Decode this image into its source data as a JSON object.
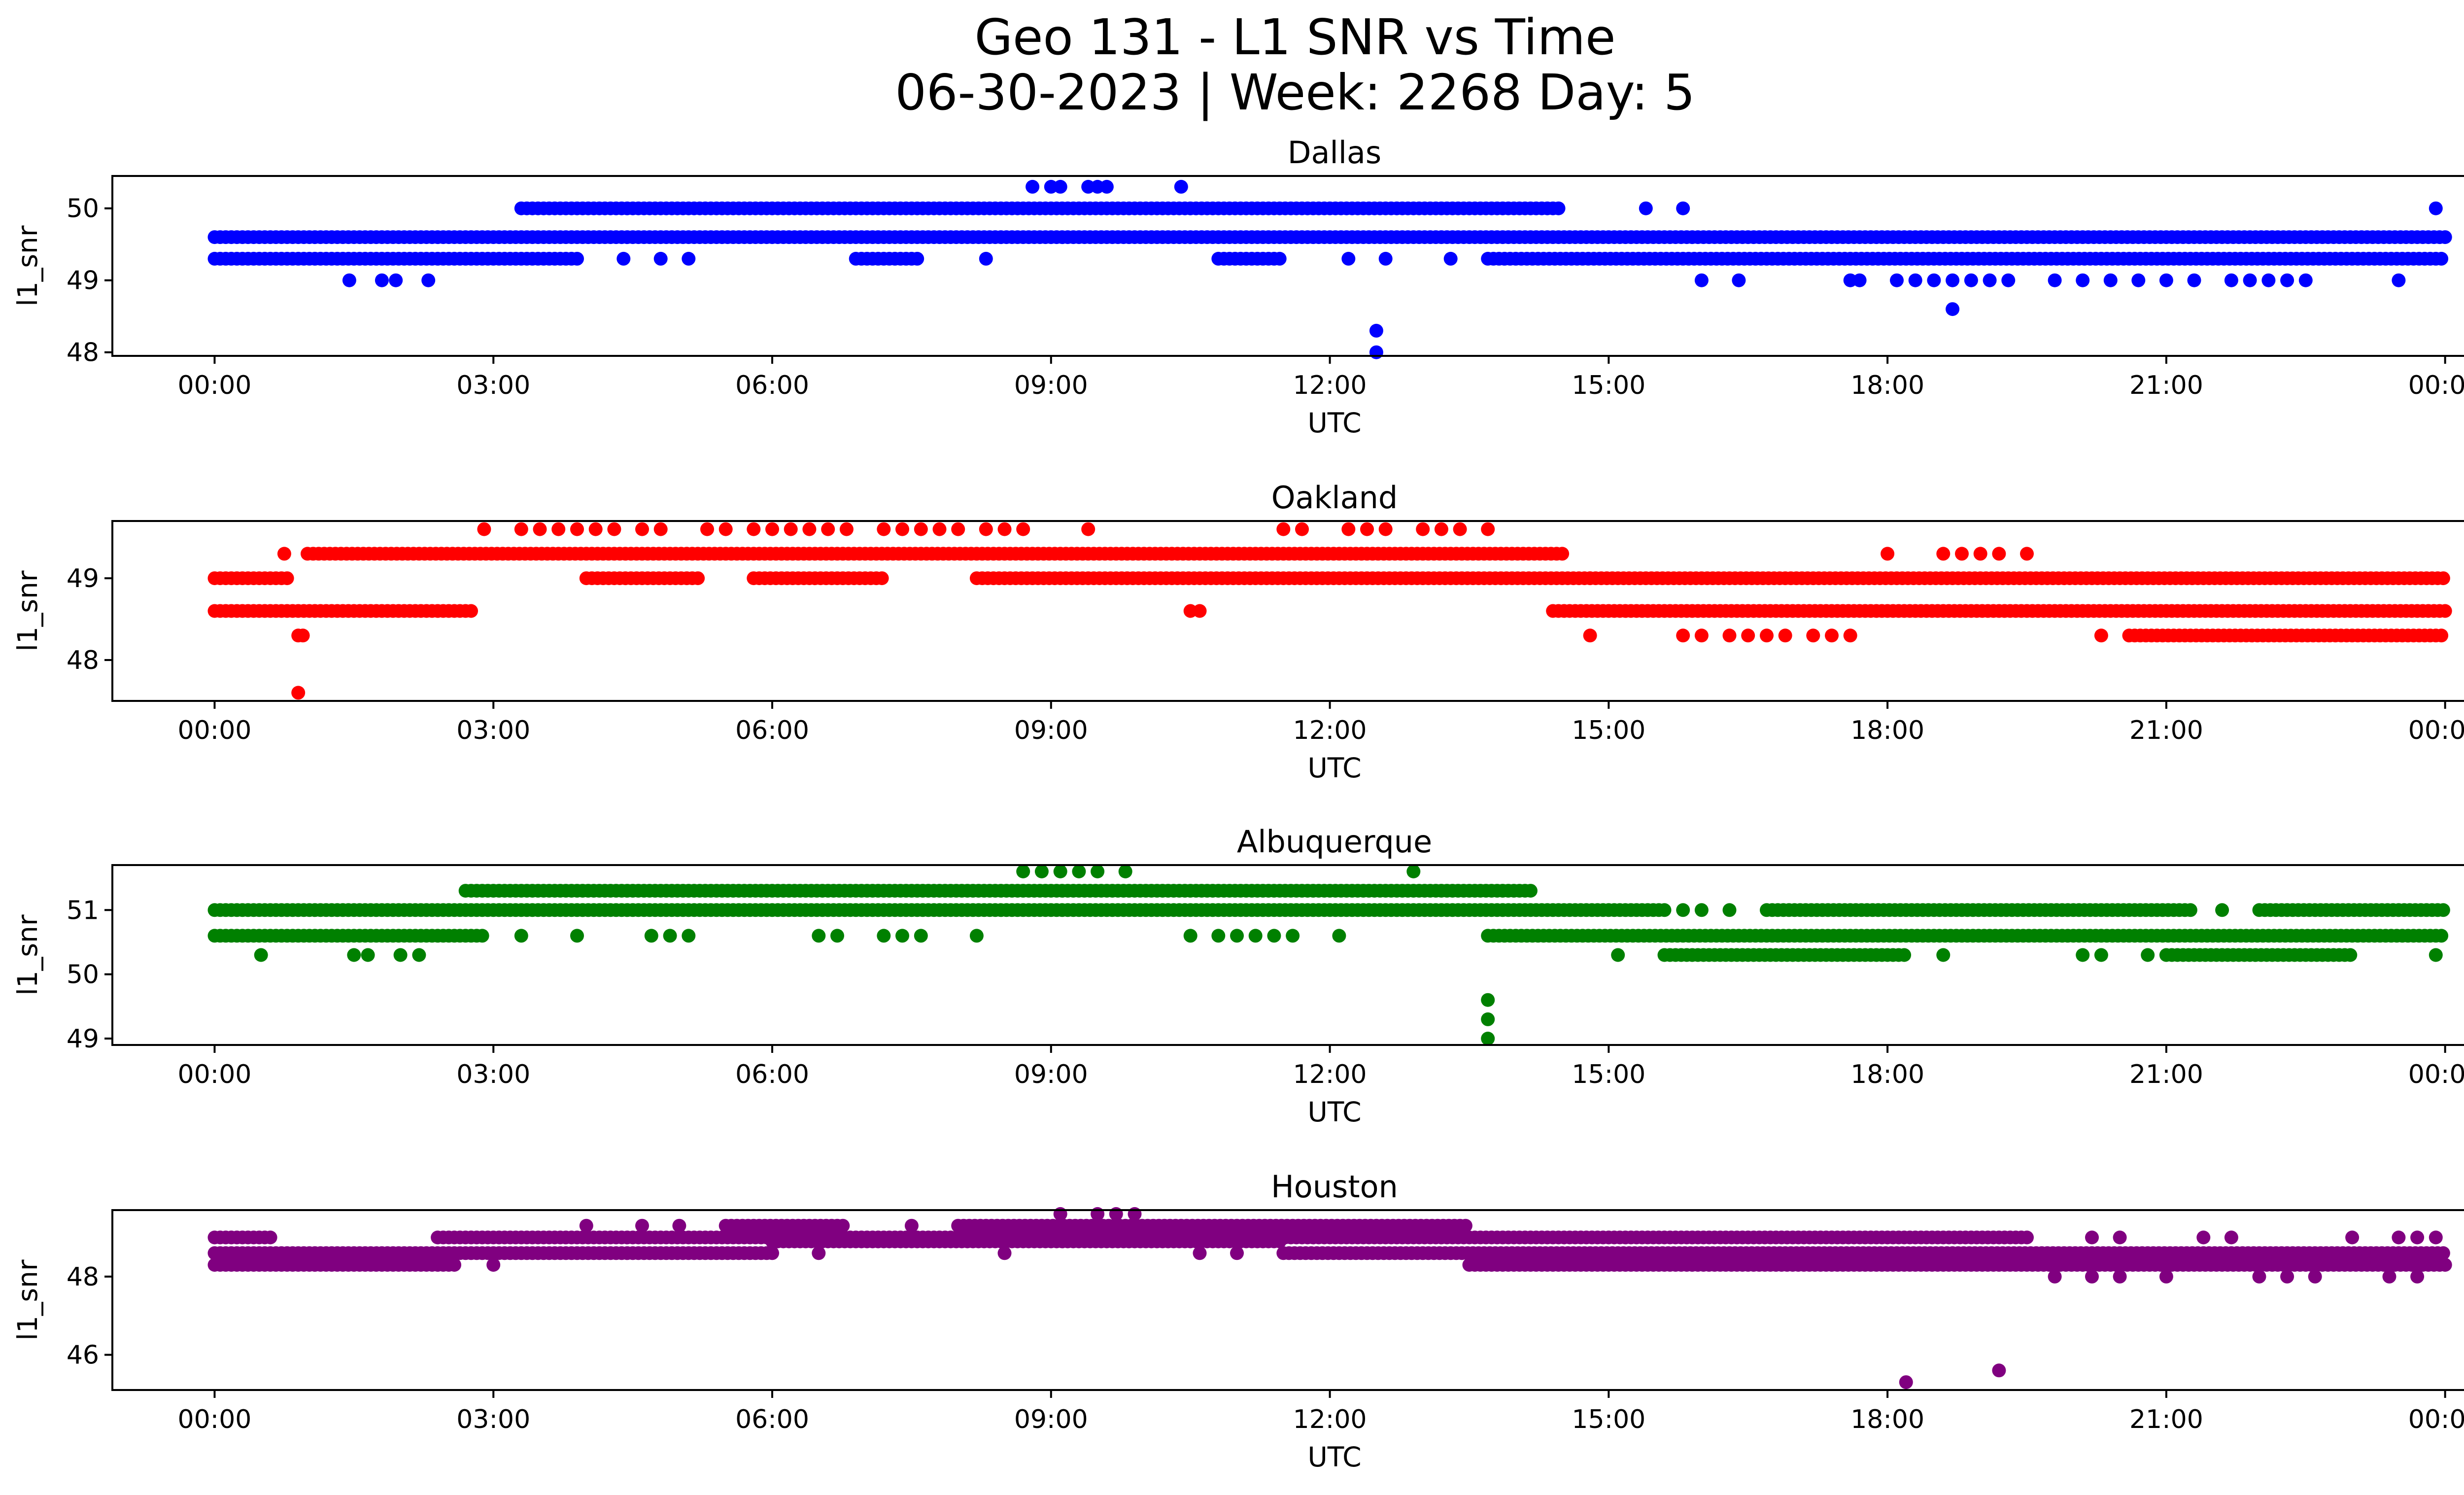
{
  "title": {
    "line1": "Geo 131 - L1 SNR vs Time",
    "line2": "06-30-2023 | Week: 2268 Day: 5"
  },
  "chart_data": [
    {
      "type": "scatter",
      "title": "Dallas",
      "xlabel": "UTC",
      "ylabel": "l1_snr",
      "color": "#0000ff",
      "xlim": [
        -1.1,
        25.2
      ],
      "ylim": [
        47.95,
        50.45
      ],
      "xticks": [
        0,
        3,
        6,
        9,
        12,
        15,
        18,
        21,
        24
      ],
      "xtick_labels": [
        "00:00",
        "03:00",
        "06:00",
        "09:00",
        "12:00",
        "15:00",
        "18:00",
        "21:00",
        "00:00"
      ],
      "yticks": [
        48,
        49,
        50
      ],
      "ytick_labels": [
        "48",
        "49",
        "50"
      ],
      "bands": [
        {
          "y": 49.6,
          "ranges": [
            [
              0,
              24
            ]
          ]
        },
        {
          "y": 49.3,
          "ranges": [
            [
              0,
              3.9
            ],
            [
              6.9,
              7.6
            ],
            [
              10.8,
              11.5
            ],
            [
              13.7,
              24
            ]
          ]
        },
        {
          "y": 50.0,
          "ranges": [
            [
              3.3,
              14.5
            ]
          ]
        }
      ],
      "points": [
        {
          "x": 8.8,
          "y": 50.3
        },
        {
          "x": 9.0,
          "y": 50.3
        },
        {
          "x": 9.1,
          "y": 50.3
        },
        {
          "x": 9.4,
          "y": 50.3
        },
        {
          "x": 9.5,
          "y": 50.3
        },
        {
          "x": 9.6,
          "y": 50.3
        },
        {
          "x": 10.4,
          "y": 50.3
        },
        {
          "x": 15.4,
          "y": 50.0
        },
        {
          "x": 15.8,
          "y": 50.0
        },
        {
          "x": 23.9,
          "y": 50.0
        },
        {
          "x": 4.4,
          "y": 49.3
        },
        {
          "x": 4.8,
          "y": 49.3
        },
        {
          "x": 5.1,
          "y": 49.3
        },
        {
          "x": 8.3,
          "y": 49.3
        },
        {
          "x": 12.2,
          "y": 49.3
        },
        {
          "x": 12.6,
          "y": 49.3
        },
        {
          "x": 13.3,
          "y": 49.3
        },
        {
          "x": 1.45,
          "y": 49.0
        },
        {
          "x": 1.8,
          "y": 49.0
        },
        {
          "x": 1.95,
          "y": 49.0
        },
        {
          "x": 2.3,
          "y": 49.0
        },
        {
          "x": 16.0,
          "y": 49.0
        },
        {
          "x": 16.4,
          "y": 49.0
        },
        {
          "x": 17.6,
          "y": 49.0
        },
        {
          "x": 17.7,
          "y": 49.0
        },
        {
          "x": 18.1,
          "y": 49.0
        },
        {
          "x": 18.3,
          "y": 49.0
        },
        {
          "x": 18.5,
          "y": 49.0
        },
        {
          "x": 18.7,
          "y": 49.0
        },
        {
          "x": 18.9,
          "y": 49.0
        },
        {
          "x": 19.1,
          "y": 49.0
        },
        {
          "x": 19.3,
          "y": 49.0
        },
        {
          "x": 19.8,
          "y": 49.0
        },
        {
          "x": 20.1,
          "y": 49.0
        },
        {
          "x": 20.4,
          "y": 49.0
        },
        {
          "x": 20.7,
          "y": 49.0
        },
        {
          "x": 21.0,
          "y": 49.0
        },
        {
          "x": 21.3,
          "y": 49.0
        },
        {
          "x": 21.7,
          "y": 49.0
        },
        {
          "x": 21.9,
          "y": 49.0
        },
        {
          "x": 22.1,
          "y": 49.0
        },
        {
          "x": 22.3,
          "y": 49.0
        },
        {
          "x": 22.5,
          "y": 49.0
        },
        {
          "x": 23.5,
          "y": 49.0
        },
        {
          "x": 18.7,
          "y": 48.6
        },
        {
          "x": 12.5,
          "y": 48.3
        },
        {
          "x": 12.5,
          "y": 48.0
        }
      ]
    },
    {
      "type": "scatter",
      "title": "Oakland",
      "xlabel": "UTC",
      "ylabel": "l1_snr",
      "color": "#ff0000",
      "xlim": [
        -1.1,
        25.2
      ],
      "ylim": [
        47.5,
        49.7
      ],
      "xticks": [
        0,
        3,
        6,
        9,
        12,
        15,
        18,
        21,
        24
      ],
      "xtick_labels": [
        "00:00",
        "03:00",
        "06:00",
        "09:00",
        "12:00",
        "15:00",
        "18:00",
        "21:00",
        "00:00"
      ],
      "yticks": [
        48,
        49
      ],
      "ytick_labels": [
        "48",
        "49"
      ],
      "bands": [
        {
          "y": 49.0,
          "ranges": [
            [
              0,
              0.8
            ],
            [
              4.0,
              5.2
            ],
            [
              5.8,
              7.2
            ],
            [
              8.2,
              24
            ]
          ]
        },
        {
          "y": 48.6,
          "ranges": [
            [
              0,
              2.8
            ],
            [
              14.4,
              24
            ]
          ]
        },
        {
          "y": 49.3,
          "ranges": [
            [
              1.0,
              14.5
            ]
          ]
        },
        {
          "y": 48.3,
          "ranges": [
            [
              20.6,
              24
            ]
          ]
        }
      ],
      "points": [
        {
          "x": 0.75,
          "y": 49.3
        },
        {
          "x": 2.9,
          "y": 49.6
        },
        {
          "x": 3.3,
          "y": 49.6
        },
        {
          "x": 3.5,
          "y": 49.6
        },
        {
          "x": 3.7,
          "y": 49.6
        },
        {
          "x": 3.9,
          "y": 49.6
        },
        {
          "x": 4.1,
          "y": 49.6
        },
        {
          "x": 4.3,
          "y": 49.6
        },
        {
          "x": 4.6,
          "y": 49.6
        },
        {
          "x": 4.8,
          "y": 49.6
        },
        {
          "x": 5.3,
          "y": 49.6
        },
        {
          "x": 5.5,
          "y": 49.6
        },
        {
          "x": 5.8,
          "y": 49.6
        },
        {
          "x": 6.0,
          "y": 49.6
        },
        {
          "x": 6.2,
          "y": 49.6
        },
        {
          "x": 6.4,
          "y": 49.6
        },
        {
          "x": 6.6,
          "y": 49.6
        },
        {
          "x": 6.8,
          "y": 49.6
        },
        {
          "x": 7.2,
          "y": 49.6
        },
        {
          "x": 7.4,
          "y": 49.6
        },
        {
          "x": 7.6,
          "y": 49.6
        },
        {
          "x": 7.8,
          "y": 49.6
        },
        {
          "x": 8.0,
          "y": 49.6
        },
        {
          "x": 8.3,
          "y": 49.6
        },
        {
          "x": 8.5,
          "y": 49.6
        },
        {
          "x": 8.7,
          "y": 49.6
        },
        {
          "x": 9.4,
          "y": 49.6
        },
        {
          "x": 11.5,
          "y": 49.6
        },
        {
          "x": 11.7,
          "y": 49.6
        },
        {
          "x": 12.2,
          "y": 49.6
        },
        {
          "x": 12.4,
          "y": 49.6
        },
        {
          "x": 12.6,
          "y": 49.6
        },
        {
          "x": 13.0,
          "y": 49.6
        },
        {
          "x": 13.2,
          "y": 49.6
        },
        {
          "x": 13.4,
          "y": 49.6
        },
        {
          "x": 13.7,
          "y": 49.6
        },
        {
          "x": 14.8,
          "y": 49.0
        },
        {
          "x": 18.0,
          "y": 49.3
        },
        {
          "x": 18.6,
          "y": 49.3
        },
        {
          "x": 18.8,
          "y": 49.3
        },
        {
          "x": 19.0,
          "y": 49.3
        },
        {
          "x": 19.2,
          "y": 49.3
        },
        {
          "x": 19.5,
          "y": 49.3
        },
        {
          "x": 0.9,
          "y": 48.3
        },
        {
          "x": 0.95,
          "y": 48.3
        },
        {
          "x": 10.5,
          "y": 48.6
        },
        {
          "x": 10.6,
          "y": 48.6
        },
        {
          "x": 14.8,
          "y": 48.3
        },
        {
          "x": 15.8,
          "y": 48.3
        },
        {
          "x": 16.0,
          "y": 48.3
        },
        {
          "x": 16.3,
          "y": 48.3
        },
        {
          "x": 16.5,
          "y": 48.3
        },
        {
          "x": 16.7,
          "y": 48.3
        },
        {
          "x": 16.9,
          "y": 48.3
        },
        {
          "x": 17.2,
          "y": 48.3
        },
        {
          "x": 17.4,
          "y": 48.3
        },
        {
          "x": 17.6,
          "y": 48.3
        },
        {
          "x": 20.3,
          "y": 48.3
        },
        {
          "x": 0.9,
          "y": 47.6
        }
      ]
    },
    {
      "type": "scatter",
      "title": "Albuquerque",
      "xlabel": "UTC",
      "ylabel": "l1_snr",
      "color": "#008000",
      "xlim": [
        -1.1,
        25.2
      ],
      "ylim": [
        48.9,
        51.7
      ],
      "xticks": [
        0,
        3,
        6,
        9,
        12,
        15,
        18,
        21,
        24
      ],
      "xtick_labels": [
        "00:00",
        "03:00",
        "06:00",
        "09:00",
        "12:00",
        "15:00",
        "18:00",
        "21:00",
        "00:00"
      ],
      "yticks": [
        49,
        50,
        51
      ],
      "ytick_labels": [
        "49",
        "50",
        "51"
      ],
      "bands": [
        {
          "y": 51.0,
          "ranges": [
            [
              0,
              15.6
            ],
            [
              16.7,
              21.3
            ],
            [
              22.0,
              24
            ]
          ]
        },
        {
          "y": 50.6,
          "ranges": [
            [
              0,
              2.9
            ],
            [
              13.7,
              24
            ]
          ]
        },
        {
          "y": 51.3,
          "ranges": [
            [
              2.7,
              14.2
            ]
          ]
        },
        {
          "y": 50.3,
          "ranges": [
            [
              15.6,
              18.2
            ],
            [
              21.0,
              23.0
            ]
          ]
        }
      ],
      "points": [
        {
          "x": 0.5,
          "y": 50.3
        },
        {
          "x": 1.5,
          "y": 50.3
        },
        {
          "x": 1.65,
          "y": 50.3
        },
        {
          "x": 2.0,
          "y": 50.3
        },
        {
          "x": 2.2,
          "y": 50.3
        },
        {
          "x": 3.3,
          "y": 50.6
        },
        {
          "x": 3.9,
          "y": 50.6
        },
        {
          "x": 4.7,
          "y": 50.6
        },
        {
          "x": 4.9,
          "y": 50.6
        },
        {
          "x": 5.1,
          "y": 50.6
        },
        {
          "x": 6.5,
          "y": 50.6
        },
        {
          "x": 6.7,
          "y": 50.6
        },
        {
          "x": 7.2,
          "y": 50.6
        },
        {
          "x": 7.4,
          "y": 50.6
        },
        {
          "x": 7.6,
          "y": 50.6
        },
        {
          "x": 8.2,
          "y": 50.6
        },
        {
          "x": 10.5,
          "y": 50.6
        },
        {
          "x": 10.8,
          "y": 50.6
        },
        {
          "x": 11.0,
          "y": 50.6
        },
        {
          "x": 11.2,
          "y": 50.6
        },
        {
          "x": 11.4,
          "y": 50.6
        },
        {
          "x": 11.6,
          "y": 50.6
        },
        {
          "x": 12.1,
          "y": 50.6
        },
        {
          "x": 8.7,
          "y": 51.6
        },
        {
          "x": 8.9,
          "y": 51.6
        },
        {
          "x": 9.1,
          "y": 51.6
        },
        {
          "x": 9.3,
          "y": 51.6
        },
        {
          "x": 9.5,
          "y": 51.6
        },
        {
          "x": 9.8,
          "y": 51.6
        },
        {
          "x": 12.9,
          "y": 51.6
        },
        {
          "x": 15.8,
          "y": 51.0
        },
        {
          "x": 16.0,
          "y": 51.0
        },
        {
          "x": 16.3,
          "y": 51.0
        },
        {
          "x": 21.6,
          "y": 51.0
        },
        {
          "x": 15.1,
          "y": 50.3
        },
        {
          "x": 18.6,
          "y": 50.3
        },
        {
          "x": 20.1,
          "y": 50.3
        },
        {
          "x": 20.3,
          "y": 50.3
        },
        {
          "x": 20.8,
          "y": 50.3
        },
        {
          "x": 23.9,
          "y": 50.3
        },
        {
          "x": 13.7,
          "y": 49.6
        },
        {
          "x": 13.7,
          "y": 49.3
        },
        {
          "x": 13.7,
          "y": 49.0
        }
      ]
    },
    {
      "type": "scatter",
      "title": "Houston",
      "xlabel": "UTC",
      "ylabel": "l1_snr",
      "color": "#800080",
      "xlim": [
        -1.1,
        25.2
      ],
      "ylim": [
        45.1,
        49.7
      ],
      "xticks": [
        0,
        3,
        6,
        9,
        12,
        15,
        18,
        21,
        24
      ],
      "xtick_labels": [
        "00:00",
        "03:00",
        "06:00",
        "09:00",
        "12:00",
        "15:00",
        "18:00",
        "21:00",
        "00:00"
      ],
      "yticks": [
        46,
        48
      ],
      "ytick_labels": [
        "46",
        "48"
      ],
      "bands": [
        {
          "y": 48.6,
          "ranges": [
            [
              0,
              6.0
            ],
            [
              11.5,
              24
            ]
          ]
        },
        {
          "y": 48.3,
          "ranges": [
            [
              0,
              2.6
            ],
            [
              13.5,
              24
            ]
          ]
        },
        {
          "y": 49.0,
          "ranges": [
            [
              0,
              0.6
            ],
            [
              2.4,
              19.5
            ]
          ]
        },
        {
          "y": 48.9,
          "ranges": [
            [
              6.0,
              11.5
            ]
          ]
        },
        {
          "y": 49.3,
          "ranges": [
            [
              5.5,
              6.8
            ],
            [
              8.0,
              13.5
            ]
          ]
        }
      ],
      "points": [
        {
          "x": 3.0,
          "y": 48.3
        },
        {
          "x": 4.0,
          "y": 49.3
        },
        {
          "x": 4.6,
          "y": 49.3
        },
        {
          "x": 5.0,
          "y": 49.3
        },
        {
          "x": 6.5,
          "y": 48.6
        },
        {
          "x": 7.5,
          "y": 49.3
        },
        {
          "x": 8.5,
          "y": 48.6
        },
        {
          "x": 9.1,
          "y": 49.6
        },
        {
          "x": 9.5,
          "y": 49.6
        },
        {
          "x": 9.7,
          "y": 49.6
        },
        {
          "x": 9.9,
          "y": 49.6
        },
        {
          "x": 10.6,
          "y": 48.6
        },
        {
          "x": 11.0,
          "y": 48.6
        },
        {
          "x": 19.8,
          "y": 48.0
        },
        {
          "x": 20.2,
          "y": 48.0
        },
        {
          "x": 20.5,
          "y": 48.0
        },
        {
          "x": 21.0,
          "y": 48.0
        },
        {
          "x": 22.0,
          "y": 48.0
        },
        {
          "x": 22.3,
          "y": 48.0
        },
        {
          "x": 22.6,
          "y": 48.0
        },
        {
          "x": 23.4,
          "y": 48.0
        },
        {
          "x": 23.7,
          "y": 48.0
        },
        {
          "x": 20.2,
          "y": 49.0
        },
        {
          "x": 20.5,
          "y": 49.0
        },
        {
          "x": 21.4,
          "y": 49.0
        },
        {
          "x": 21.7,
          "y": 49.0
        },
        {
          "x": 23.0,
          "y": 49.0
        },
        {
          "x": 23.5,
          "y": 49.0
        },
        {
          "x": 23.7,
          "y": 49.0
        },
        {
          "x": 23.9,
          "y": 49.0
        },
        {
          "x": 18.2,
          "y": 45.3
        },
        {
          "x": 19.2,
          "y": 45.6
        }
      ]
    }
  ]
}
